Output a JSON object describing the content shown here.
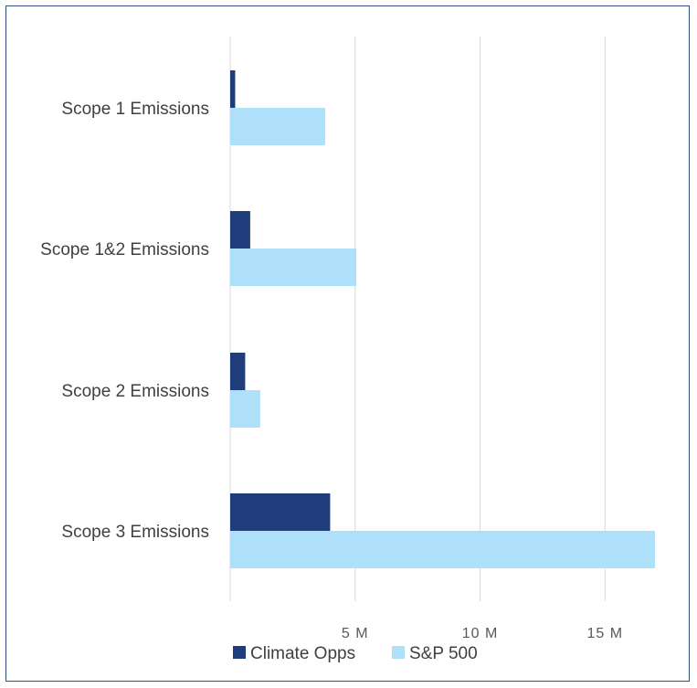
{
  "chart_data": {
    "type": "bar",
    "orientation": "horizontal",
    "categories": [
      "Scope 1 Emissions",
      "Scope 1&2 Emissions",
      "Scope 2 Emissions",
      "Scope 3 Emissions"
    ],
    "series": [
      {
        "name": "Climate Opps",
        "color": "#1f3d7a",
        "values": [
          0.2,
          0.8,
          0.6,
          4.0
        ]
      },
      {
        "name": "S&P 500",
        "color": "#aee0fa",
        "values": [
          3.8,
          5.05,
          1.2,
          17.0
        ]
      }
    ],
    "xlim": [
      0,
      17
    ],
    "xticks": [
      {
        "value": 5,
        "label": "5 M"
      },
      {
        "value": 10,
        "label": "10 M"
      },
      {
        "value": 15,
        "label": "15 M"
      }
    ],
    "grid": true,
    "legend_position": "bottom"
  }
}
